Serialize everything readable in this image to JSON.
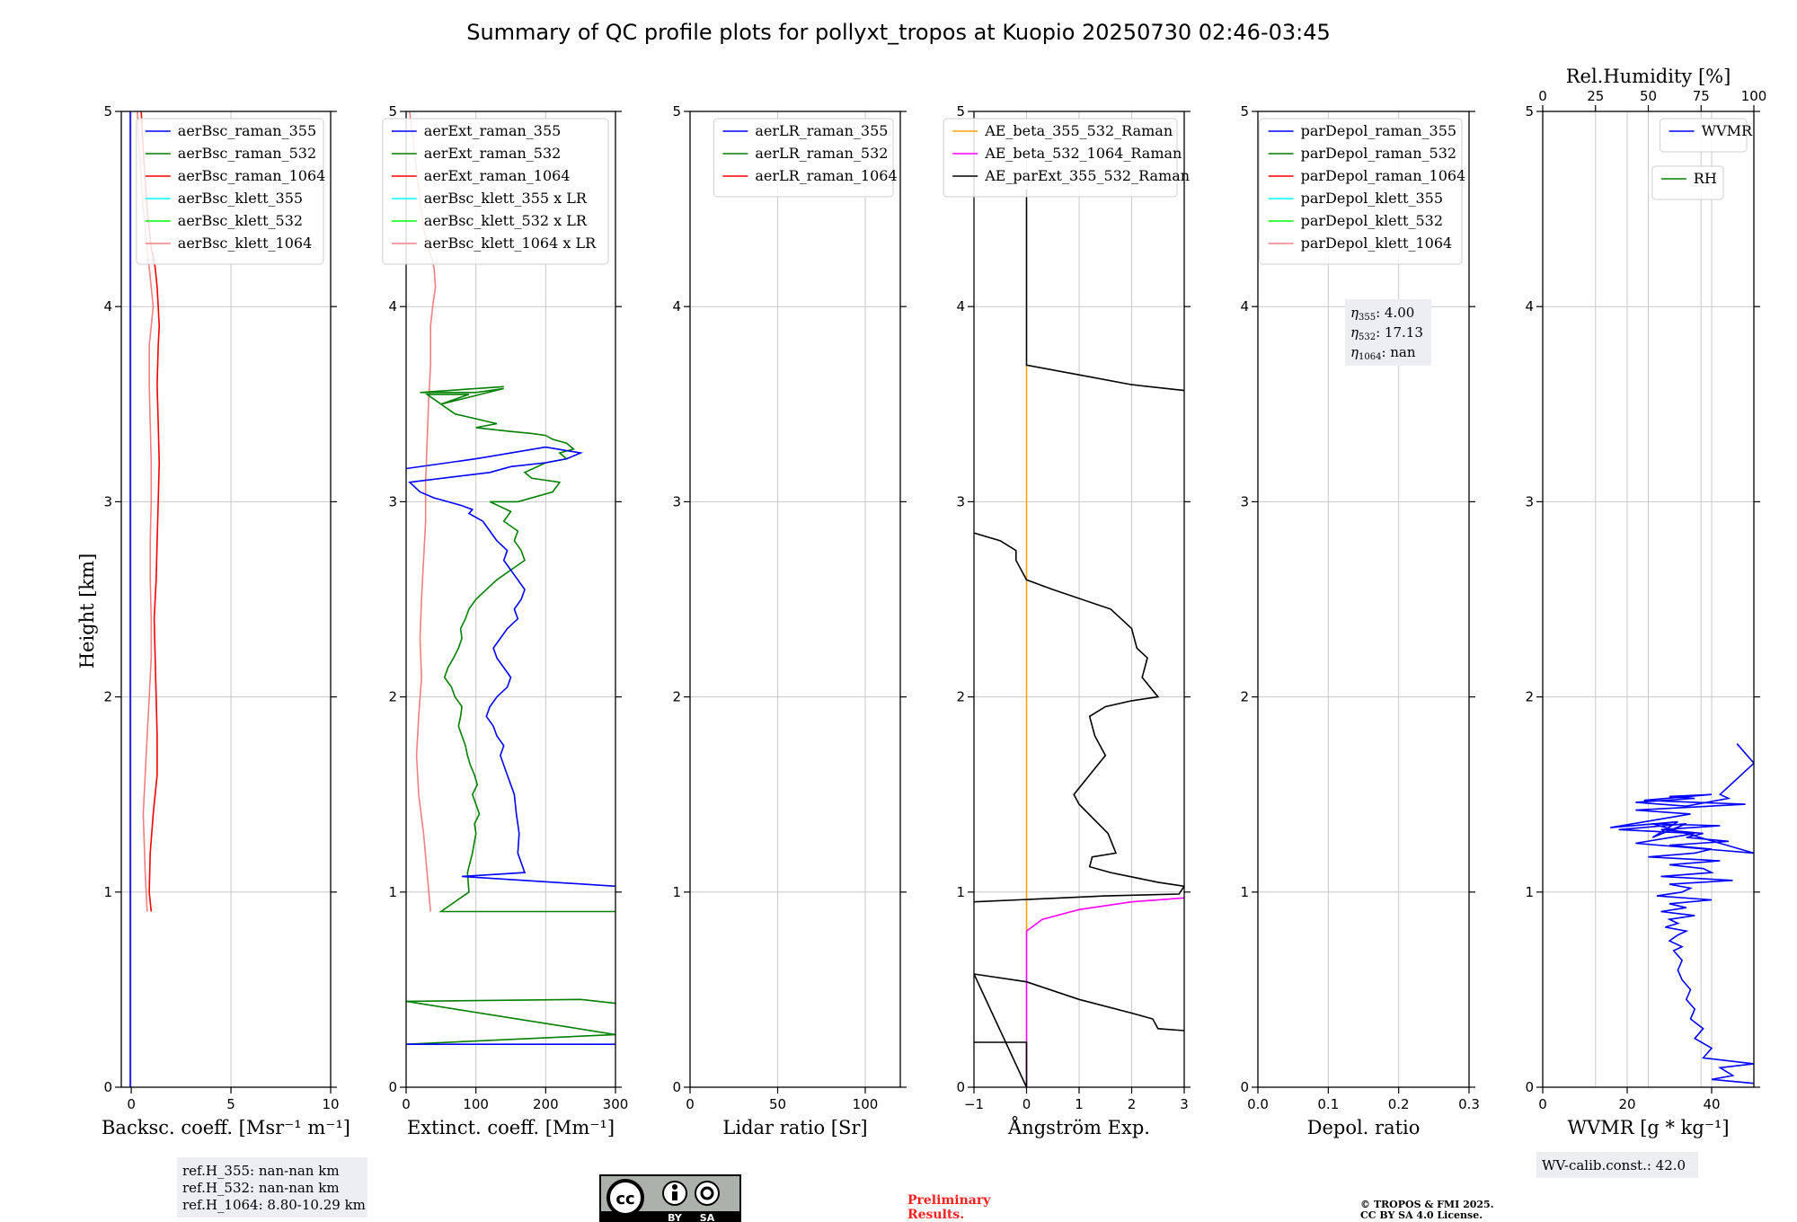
{
  "title": "Summary of QC profile plots for pollyxt_tropos at Kuopio 20250730 02:46-03:45",
  "ylabel": "Height [km]",
  "license_text": "© TROPOS & FMI 2025.\nCC BY SA 4.0 License.",
  "preliminary_text": "Preliminary\nResults.",
  "cc_logo": {
    "labels": [
      "BY",
      "SA"
    ]
  },
  "chart_data": [
    {
      "type": "line",
      "xlabel": "Backsc. coeff. [Msr⁻¹ m⁻¹]",
      "xlim": [
        -0.5,
        10
      ],
      "ylim": [
        0,
        5
      ],
      "xticks": [
        0,
        5,
        10
      ],
      "yticks": [
        0,
        1,
        2,
        3,
        4,
        5
      ],
      "legend_position": "top-right",
      "legend": [
        {
          "name": "aerBsc_raman_355",
          "color": "#0000ff"
        },
        {
          "name": "aerBsc_raman_532",
          "color": "#008000"
        },
        {
          "name": "aerBsc_raman_1064",
          "color": "#ff0000"
        },
        {
          "name": "aerBsc_klett_355",
          "color": "#00ffff"
        },
        {
          "name": "aerBsc_klett_532",
          "color": "#00ff00"
        },
        {
          "name": "aerBsc_klett_1064",
          "color": "#f08080"
        }
      ],
      "series": [
        {
          "name": "aerBsc_raman_1064",
          "color": "#ff0000",
          "x": [
            1.0,
            0.9,
            0.95,
            1.1,
            1.3,
            1.3,
            1.25,
            1.2,
            1.15,
            1.25,
            1.3,
            1.35,
            1.4,
            1.35,
            1.3,
            1.35,
            1.4,
            1.35,
            1.3,
            1.2,
            1.0,
            0.8,
            0.6,
            0.5
          ],
          "y": [
            0.9,
            1.0,
            1.2,
            1.4,
            1.6,
            1.8,
            2.0,
            2.2,
            2.4,
            2.6,
            2.8,
            3.0,
            3.2,
            3.4,
            3.6,
            3.8,
            3.9,
            4.0,
            4.1,
            4.2,
            4.3,
            4.5,
            4.8,
            5.0
          ]
        },
        {
          "name": "aerBsc_klett_1064",
          "color": "#f08080",
          "x": [
            0.8,
            0.7,
            0.6,
            0.7,
            0.8,
            0.9,
            1.0,
            1.0,
            0.95,
            0.95,
            1.0,
            1.0,
            0.95,
            0.9,
            0.9,
            1.0,
            1.1,
            1.0,
            0.8,
            0.6,
            0.4,
            0.3
          ],
          "y": [
            0.9,
            1.1,
            1.4,
            1.6,
            1.8,
            2.0,
            2.2,
            2.4,
            2.6,
            2.8,
            3.0,
            3.2,
            3.4,
            3.6,
            3.8,
            3.9,
            4.0,
            4.1,
            4.3,
            4.5,
            4.8,
            5.0
          ]
        },
        {
          "name": "aerBsc_raman_355",
          "color": "#0000ff",
          "x": [
            -0.05,
            -0.05
          ],
          "y": [
            0.0,
            5.0
          ]
        }
      ],
      "annotation": {
        "lines": [
          "ref.H_355: nan-nan km",
          "ref.H_532: nan-nan km",
          "ref.H_1064: 8.80-10.29 km"
        ],
        "position": "below"
      }
    },
    {
      "type": "line",
      "xlabel": "Extinct. coeff. [Mm⁻¹]",
      "xlim": [
        0,
        300
      ],
      "ylim": [
        0,
        5
      ],
      "xticks": [
        0,
        100,
        200,
        300
      ],
      "yticks": [
        0,
        1,
        2,
        3,
        4,
        5
      ],
      "legend_position": "top-right",
      "legend": [
        {
          "name": "aerExt_raman_355",
          "color": "#0000ff"
        },
        {
          "name": "aerExt_raman_532",
          "color": "#008000"
        },
        {
          "name": "aerExt_raman_1064",
          "color": "#ff0000"
        },
        {
          "name": "aerBsc_klett_355 x LR",
          "color": "#00ffff"
        },
        {
          "name": "aerBsc_klett_532 x LR",
          "color": "#00ff00"
        },
        {
          "name": "aerBsc_klett_1064 x LR",
          "color": "#f08080"
        }
      ],
      "series": [
        {
          "name": "aerBsc_klett_1064 x LR",
          "color": "#f08080",
          "x": [
            35,
            30,
            25,
            18,
            15,
            18,
            22,
            20,
            22,
            25,
            28,
            28,
            30,
            32,
            35,
            35,
            38,
            42,
            40,
            25,
            15,
            5
          ],
          "y": [
            0.9,
            1.1,
            1.3,
            1.5,
            1.7,
            1.9,
            2.1,
            2.3,
            2.5,
            2.7,
            2.9,
            3.1,
            3.3,
            3.5,
            3.7,
            3.9,
            4.0,
            4.1,
            4.2,
            4.4,
            4.7,
            5.0
          ]
        },
        {
          "name": "aerExt_raman_532",
          "color": "#008000",
          "x": [
            300,
            50,
            90,
            88,
            95,
            100,
            98,
            105,
            100,
            95,
            102,
            98,
            92,
            88,
            85,
            80,
            75,
            78,
            80,
            70,
            65,
            55,
            60,
            68,
            75,
            80,
            78,
            85,
            90,
            100,
            115,
            130,
            150,
            170,
            165,
            155,
            160,
            140,
            150,
            120,
            160,
            210,
            220,
            180,
            170,
            200,
            230,
            220,
            240,
            230,
            210,
            200,
            180,
            150,
            100,
            130,
            70,
            30,
            90,
            50,
            140,
            100,
            20,
            140
          ],
          "y": [
            0.9,
            0.9,
            1.0,
            1.1,
            1.2,
            1.3,
            1.35,
            1.4,
            1.45,
            1.5,
            1.55,
            1.6,
            1.65,
            1.7,
            1.75,
            1.8,
            1.85,
            1.9,
            1.95,
            2.0,
            2.05,
            2.1,
            2.15,
            2.2,
            2.25,
            2.3,
            2.35,
            2.4,
            2.45,
            2.5,
            2.55,
            2.6,
            2.65,
            2.7,
            2.75,
            2.8,
            2.85,
            2.9,
            2.95,
            3.0,
            3.0,
            3.05,
            3.1,
            3.12,
            3.15,
            3.2,
            3.22,
            3.25,
            3.27,
            3.3,
            3.32,
            3.34,
            3.35,
            3.36,
            3.38,
            3.4,
            3.45,
            3.55,
            3.55,
            3.5,
            3.58,
            3.56,
            3.56,
            3.59
          ]
        },
        {
          "name": "aerExt_raman_532 (low)",
          "color": "#008000",
          "x": [
            0,
            300,
            0,
            250,
            300
          ],
          "y": [
            0.22,
            0.27,
            0.44,
            0.45,
            0.43
          ]
        },
        {
          "name": "aerExt_raman_355",
          "color": "#0000ff",
          "x": [
            300,
            80,
            170,
            165,
            160,
            162,
            158,
            155,
            150,
            145,
            140,
            135,
            140,
            130,
            125,
            115,
            120,
            130,
            145,
            150,
            140,
            130,
            125,
            135,
            145,
            160,
            155,
            165,
            170,
            160,
            150,
            140,
            145,
            130,
            120,
            110,
            100,
            90,
            95,
            80,
            60,
            40,
            20,
            5,
            120,
            150,
            200,
            230,
            250,
            200,
            100,
            0
          ],
          "y": [
            1.03,
            1.08,
            1.1,
            1.15,
            1.2,
            1.3,
            1.4,
            1.5,
            1.55,
            1.6,
            1.65,
            1.7,
            1.75,
            1.8,
            1.85,
            1.9,
            1.95,
            2.0,
            2.05,
            2.1,
            2.15,
            2.2,
            2.25,
            2.3,
            2.35,
            2.4,
            2.45,
            2.5,
            2.55,
            2.6,
            2.65,
            2.7,
            2.75,
            2.8,
            2.85,
            2.9,
            2.92,
            2.94,
            2.96,
            2.98,
            3.0,
            3.02,
            3.05,
            3.1,
            3.15,
            3.18,
            3.2,
            3.22,
            3.25,
            3.28,
            3.22,
            3.17
          ]
        },
        {
          "name": "aerExt_raman_355 (low)",
          "color": "#0000ff",
          "x": [
            0,
            300
          ],
          "y": [
            0.22,
            0.22
          ]
        }
      ]
    },
    {
      "type": "line",
      "xlabel": "Lidar ratio [Sr]",
      "xlim": [
        0,
        120
      ],
      "ylim": [
        0,
        5
      ],
      "xticks": [
        0,
        50,
        100
      ],
      "yticks": [
        0,
        1,
        2,
        3,
        4,
        5
      ],
      "legend_position": "top-right",
      "legend": [
        {
          "name": "aerLR_raman_355",
          "color": "#0000ff"
        },
        {
          "name": "aerLR_raman_532",
          "color": "#008000"
        },
        {
          "name": "aerLR_raman_1064",
          "color": "#ff0000"
        }
      ],
      "series": []
    },
    {
      "type": "line",
      "xlabel": "Ångström Exp.",
      "xlim": [
        -1,
        3
      ],
      "ylim": [
        0,
        5
      ],
      "xticks": [
        -1,
        0,
        1,
        2,
        3
      ],
      "yticks": [
        0,
        1,
        2,
        3,
        4,
        5
      ],
      "legend_position": "top-right",
      "legend": [
        {
          "name": "AE_beta_355_532_Raman",
          "color": "#ffa500"
        },
        {
          "name": "AE_beta_532_1064_Raman",
          "color": "#ff00ff"
        },
        {
          "name": "AE_parExt_355_532_Raman",
          "color": "#000000"
        }
      ],
      "series": [
        {
          "name": "AE_beta_355_532_Raman",
          "color": "#ffa500",
          "x": [
            0,
            0
          ],
          "y": [
            0.8,
            3.7
          ]
        },
        {
          "name": "AE_beta_532_1064_Raman",
          "color": "#ff00ff",
          "x": [
            0,
            0,
            0.3,
            1.0,
            2.0,
            3.0
          ],
          "y": [
            0,
            0.8,
            0.86,
            0.91,
            0.95,
            0.97
          ]
        },
        {
          "name": "AE_parExt_355_532_Raman",
          "color": "#000000",
          "x": [
            -1,
            0,
            0,
            -1,
            0,
            1,
            2,
            2.4,
            2.5,
            3
          ],
          "y": [
            0.23,
            0.23,
            0,
            0.58,
            0.54,
            0.45,
            0.38,
            0.35,
            0.3,
            0.29
          ]
        },
        {
          "name": "AE_parExt_355_532_Raman (mid)",
          "color": "#000000",
          "x": [
            -1,
            1.5,
            2.9,
            3.0,
            2.5,
            1.6,
            1.2,
            1.25,
            1.7,
            1.55,
            1.0,
            0.9,
            1.2,
            1.5,
            1.3,
            1.2,
            1.5,
            2.0,
            2.5,
            2.2,
            2.3,
            2.1,
            2.0,
            1.8,
            1.6,
            0.5,
            0,
            -0.2,
            -0.2,
            -0.5,
            -1
          ],
          "y": [
            0.95,
            0.98,
            0.99,
            1.03,
            1.05,
            1.1,
            1.13,
            1.18,
            1.2,
            1.3,
            1.45,
            1.5,
            1.6,
            1.7,
            1.8,
            1.9,
            1.95,
            1.98,
            2.0,
            2.1,
            2.2,
            2.25,
            2.35,
            2.4,
            2.45,
            2.55,
            2.6,
            2.7,
            2.75,
            2.8,
            2.84
          ]
        },
        {
          "name": "AE_parExt_355_532_Raman (top)",
          "color": "#000000",
          "x": [
            0,
            0,
            1,
            2,
            3
          ],
          "y": [
            4.6,
            3.7,
            3.65,
            3.6,
            3.57
          ]
        }
      ]
    },
    {
      "type": "line",
      "xlabel": "Depol. ratio",
      "xlim": [
        0,
        0.3
      ],
      "ylim": [
        0,
        5
      ],
      "xticks": [
        0.0,
        0.1,
        0.2,
        0.3
      ],
      "xticklabels": [
        "0.0",
        "0.1",
        "0.2",
        "0.3"
      ],
      "yticks": [
        0,
        1,
        2,
        3,
        4,
        5
      ],
      "legend_position": "top-right",
      "legend": [
        {
          "name": "parDepol_raman_355",
          "color": "#0000ff"
        },
        {
          "name": "parDepol_raman_532",
          "color": "#008000"
        },
        {
          "name": "parDepol_raman_1064",
          "color": "#ff0000"
        },
        {
          "name": "parDepol_klett_355",
          "color": "#00ffff"
        },
        {
          "name": "parDepol_klett_532",
          "color": "#00ff00"
        },
        {
          "name": "parDepol_klett_1064",
          "color": "#f08080"
        }
      ],
      "series": [],
      "annotation": {
        "parts": [
          {
            "sym": "η",
            "sub": "355",
            "val": ": 4.00"
          },
          {
            "sym": "η",
            "sub": "532",
            "val": ": 17.13"
          },
          {
            "sym": "η",
            "sub": "1064",
            "val": ": nan"
          }
        ]
      }
    },
    {
      "type": "line",
      "xlabel": "WVMR [g * kg⁻¹]",
      "top_xlabel": "Rel.Humidity [%]",
      "top_xticks": [
        0,
        25,
        50,
        75,
        100
      ],
      "top_xlim": [
        0,
        100
      ],
      "xlim": [
        0,
        50
      ],
      "ylim": [
        0,
        5
      ],
      "xticks": [
        0,
        20,
        40
      ],
      "yticks": [
        0,
        1,
        2,
        3,
        4,
        5
      ],
      "legend_position": "top-right",
      "legend": [
        {
          "name": "WVMR",
          "color": "#0000ff"
        }
      ],
      "legend2": [
        {
          "name": "RH",
          "color": "#008000"
        }
      ],
      "series": [
        {
          "name": "WVMR",
          "color": "#0000ff",
          "x": [
            50,
            40,
            45,
            42,
            50,
            38,
            40,
            36,
            38,
            35,
            36,
            34,
            35,
            33,
            32,
            33,
            31,
            33,
            30,
            32,
            34,
            29,
            32,
            30,
            36,
            28,
            34,
            30,
            40,
            27,
            33,
            35,
            30,
            45,
            28,
            40,
            38,
            30,
            42,
            25,
            36,
            40,
            30,
            44,
            34,
            38,
            28,
            42,
            26,
            34,
            50,
            22,
            36,
            18,
            34,
            26,
            32,
            16,
            35,
            22,
            48,
            24,
            40,
            30,
            36,
            22,
            28,
            34,
            44,
            42,
            50,
            46
          ],
          "y": [
            0.02,
            0.04,
            0.06,
            0.1,
            0.12,
            0.15,
            0.2,
            0.25,
            0.3,
            0.35,
            0.4,
            0.45,
            0.5,
            0.55,
            0.6,
            0.65,
            0.7,
            0.72,
            0.75,
            0.78,
            0.8,
            0.82,
            0.84,
            0.86,
            0.88,
            0.9,
            0.92,
            0.94,
            0.96,
            0.98,
            1.0,
            1.02,
            1.04,
            1.06,
            1.08,
            1.1,
            1.12,
            1.14,
            1.16,
            1.18,
            1.2,
            1.22,
            1.24,
            1.26,
            1.28,
            1.3,
            1.32,
            1.34,
            1.35,
            1.3,
            1.2,
            1.25,
            1.3,
            1.32,
            1.35,
            1.28,
            1.36,
            1.33,
            1.4,
            1.42,
            1.45,
            1.47,
            1.5,
            1.49,
            1.48,
            1.46,
            1.45,
            1.44,
            1.48,
            1.5,
            1.66,
            1.76
          ]
        }
      ],
      "annotation": {
        "lines": [
          "WV-calib.const.: 42.0"
        ],
        "position": "below"
      }
    }
  ]
}
